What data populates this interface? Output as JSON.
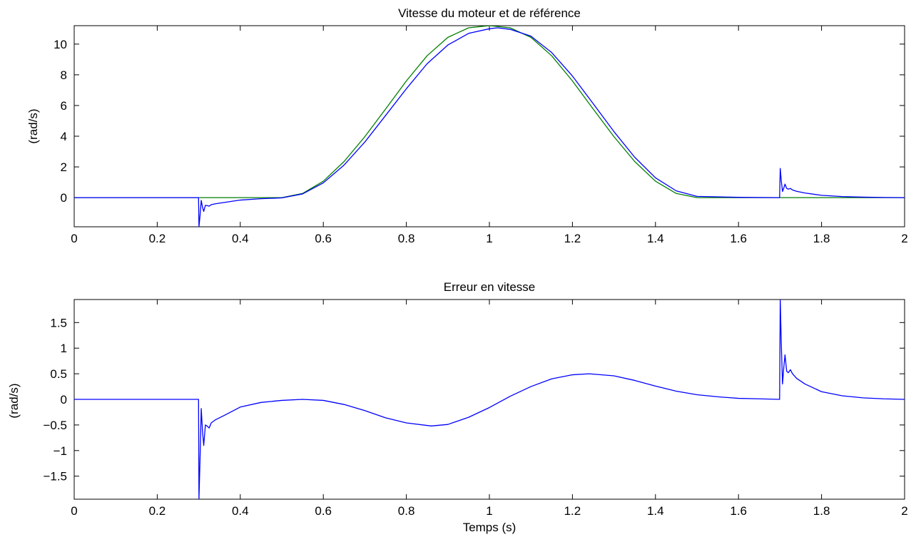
{
  "chart_data": [
    {
      "type": "line",
      "title": "Vitesse du moteur et de référence",
      "xlabel": "",
      "ylabel": "(rad/s)",
      "xlim": [
        0,
        2
      ],
      "ylim": [
        -1.9,
        11.2
      ],
      "xticks": [
        0,
        0.2,
        0.4,
        0.6,
        0.8,
        1,
        1.2,
        1.4,
        1.6,
        1.8,
        2
      ],
      "xtick_labels": [
        "0",
        "0.2",
        "0.4",
        "0.6",
        "0.8",
        "1",
        "1.2",
        "1.4",
        "1.6",
        "1.8",
        "2"
      ],
      "yticks": [
        0,
        2,
        4,
        6,
        8,
        10
      ],
      "ytick_labels": [
        "0",
        "2",
        "4",
        "6",
        "8",
        "10"
      ],
      "grid": false,
      "series": [
        {
          "color": "#007f00",
          "x": [
            0,
            0.5,
            0.55,
            0.6,
            0.65,
            0.7,
            0.75,
            0.8,
            0.85,
            0.9,
            0.95,
            1.0,
            1.05,
            1.1,
            1.15,
            1.2,
            1.25,
            1.3,
            1.35,
            1.4,
            1.45,
            1.5,
            2.0
          ],
          "y": [
            0,
            0,
            0.27,
            1.07,
            2.35,
            3.97,
            5.77,
            7.6,
            9.24,
            10.44,
            11.06,
            11.2,
            11.06,
            10.44,
            9.24,
            7.6,
            5.77,
            3.97,
            2.35,
            1.07,
            0.27,
            0,
            0
          ]
        },
        {
          "color": "#0000ff",
          "x": [
            0,
            0.2995,
            0.3005,
            0.303,
            0.306,
            0.309,
            0.312,
            0.316,
            0.32,
            0.325,
            0.33,
            0.34,
            0.36,
            0.4,
            0.45,
            0.5,
            0.55,
            0.6,
            0.65,
            0.7,
            0.75,
            0.8,
            0.85,
            0.9,
            0.95,
            1.0,
            1.02,
            1.05,
            1.1,
            1.15,
            1.2,
            1.25,
            1.3,
            1.35,
            1.4,
            1.45,
            1.5,
            1.55,
            1.6,
            1.699,
            1.7005,
            1.703,
            1.706,
            1.709,
            1.712,
            1.716,
            1.72,
            1.725,
            1.73,
            1.74,
            1.76,
            1.8,
            1.85,
            1.9,
            1.95,
            2.0
          ],
          "y": [
            0,
            0,
            -1.9,
            -1.2,
            -0.18,
            -0.62,
            -0.9,
            -0.5,
            -0.52,
            -0.56,
            -0.46,
            -0.4,
            -0.32,
            -0.16,
            -0.07,
            -0.02,
            0.24,
            0.96,
            2.12,
            3.62,
            5.35,
            7.09,
            8.72,
            9.94,
            10.7,
            11.0,
            11.06,
            10.96,
            10.52,
            9.45,
            7.92,
            6.12,
            4.3,
            2.63,
            1.29,
            0.44,
            0.08,
            0.05,
            0.02,
            0,
            1.9,
            1.1,
            0.4,
            0.62,
            0.88,
            0.6,
            0.55,
            0.6,
            0.5,
            0.41,
            0.3,
            0.15,
            0.07,
            0.03,
            0.01,
            0
          ]
        }
      ]
    },
    {
      "type": "line",
      "title": "Erreur en vitesse",
      "xlabel": "Temps (s)",
      "ylabel": "(rad/s)",
      "xlim": [
        0,
        2
      ],
      "ylim": [
        -1.95,
        1.95
      ],
      "xticks": [
        0,
        0.2,
        0.4,
        0.6,
        0.8,
        1,
        1.2,
        1.4,
        1.6,
        1.8,
        2
      ],
      "xtick_labels": [
        "0",
        "0.2",
        "0.4",
        "0.6",
        "0.8",
        "1",
        "1.2",
        "1.4",
        "1.6",
        "1.8",
        "2"
      ],
      "yticks": [
        -1.5,
        -1,
        -0.5,
        0,
        0.5,
        1,
        1.5
      ],
      "ytick_labels": [
        "−1.5",
        "−1",
        "−0.5",
        "0",
        "0.5",
        "1",
        "1.5"
      ],
      "grid": false,
      "series": [
        {
          "color": "#0000ff",
          "x": [
            0,
            0.2995,
            0.3005,
            0.303,
            0.306,
            0.309,
            0.312,
            0.316,
            0.32,
            0.325,
            0.33,
            0.34,
            0.36,
            0.4,
            0.45,
            0.5,
            0.55,
            0.6,
            0.65,
            0.7,
            0.75,
            0.8,
            0.86,
            0.9,
            0.95,
            1.0,
            1.05,
            1.1,
            1.15,
            1.2,
            1.24,
            1.3,
            1.35,
            1.4,
            1.45,
            1.5,
            1.55,
            1.6,
            1.65,
            1.699,
            1.7005,
            1.703,
            1.706,
            1.709,
            1.712,
            1.716,
            1.72,
            1.725,
            1.73,
            1.74,
            1.76,
            1.8,
            1.85,
            1.9,
            1.95,
            2.0
          ],
          "y": [
            0,
            0,
            -1.95,
            -1.2,
            -0.18,
            -0.62,
            -0.9,
            -0.5,
            -0.52,
            -0.56,
            -0.46,
            -0.4,
            -0.32,
            -0.15,
            -0.06,
            -0.02,
            0,
            -0.02,
            -0.1,
            -0.22,
            -0.36,
            -0.46,
            -0.52,
            -0.49,
            -0.35,
            -0.16,
            0.06,
            0.25,
            0.4,
            0.48,
            0.5,
            0.46,
            0.37,
            0.26,
            0.16,
            0.09,
            0.05,
            0.02,
            0.01,
            0,
            1.95,
            1.1,
            0.3,
            0.62,
            0.87,
            0.55,
            0.52,
            0.58,
            0.5,
            0.41,
            0.3,
            0.15,
            0.07,
            0.03,
            0.01,
            0
          ]
        }
      ]
    }
  ]
}
